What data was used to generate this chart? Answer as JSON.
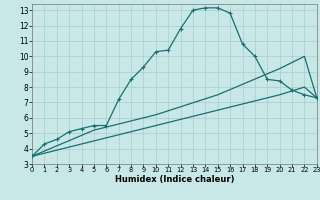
{
  "xlabel": "Humidex (Indice chaleur)",
  "xlim": [
    0,
    23
  ],
  "ylim": [
    3,
    13.4
  ],
  "xticks": [
    0,
    1,
    2,
    3,
    4,
    5,
    6,
    7,
    8,
    9,
    10,
    11,
    12,
    13,
    14,
    15,
    16,
    17,
    18,
    19,
    20,
    21,
    22,
    23
  ],
  "yticks": [
    3,
    4,
    5,
    6,
    7,
    8,
    9,
    10,
    11,
    12,
    13
  ],
  "bg_color": "#c8e8e8",
  "grid_color": "#a8cccc",
  "line_color": "#1a6e6e",
  "curve1_x": [
    0,
    1,
    2,
    3,
    4,
    5,
    6,
    7,
    8,
    9,
    10,
    11,
    12,
    13,
    14,
    15,
    16,
    17,
    18,
    19,
    20,
    21,
    22,
    23
  ],
  "curve1_y": [
    3.5,
    4.3,
    4.6,
    5.1,
    5.3,
    5.5,
    5.5,
    7.2,
    8.5,
    9.3,
    10.3,
    10.4,
    11.8,
    13.0,
    13.15,
    13.15,
    12.8,
    10.8,
    10.0,
    8.5,
    8.4,
    7.8,
    7.5,
    7.3
  ],
  "curve2_x": [
    0,
    5,
    10,
    15,
    20,
    22,
    23
  ],
  "curve2_y": [
    3.5,
    5.2,
    6.2,
    7.5,
    9.2,
    10.0,
    7.3
  ],
  "curve3_x": [
    0,
    5,
    10,
    15,
    20,
    22,
    23
  ],
  "curve3_y": [
    3.5,
    4.5,
    5.5,
    6.5,
    7.5,
    8.0,
    7.3
  ]
}
